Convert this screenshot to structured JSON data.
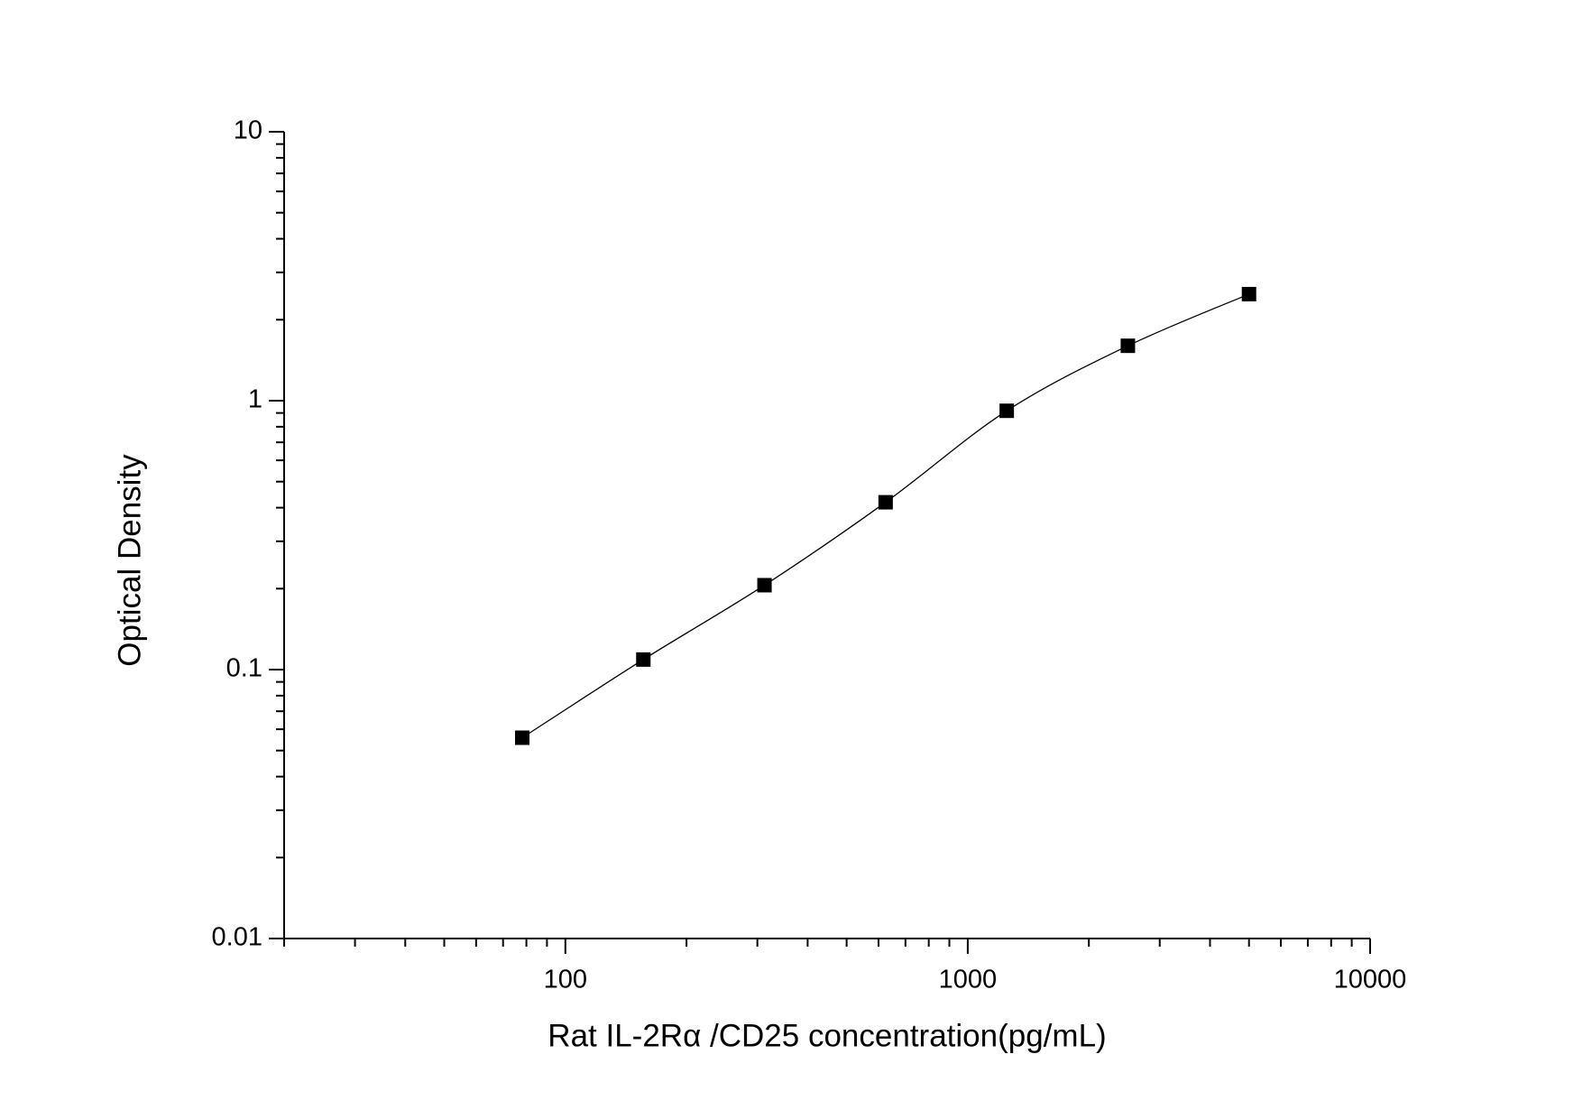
{
  "chart_data": {
    "type": "line",
    "x_label": "Rat   IL-2Rα  /CD25 concentration(pg/mL)",
    "y_label": "Optical Density",
    "x": [
      78.125,
      156.25,
      312.5,
      625,
      1250,
      2500,
      5000
    ],
    "series": [
      {
        "color": "#000000",
        "values": [
          0.0558,
          0.109,
          0.206,
          0.419,
          0.917,
          1.6,
          2.49
        ]
      }
    ],
    "xscale": "log",
    "yscale": "log",
    "xlim": [
      20,
      10000
    ],
    "ylim": [
      0.01,
      10
    ],
    "xticks": [
      100,
      1000,
      10000
    ],
    "yticks": [
      0.01,
      0.1,
      1,
      10
    ],
    "xminor_ticks": [
      20,
      30,
      40,
      50,
      60,
      70,
      80,
      90,
      200,
      300,
      400,
      500,
      600,
      700,
      800,
      900,
      2000,
      3000,
      4000,
      5000,
      6000,
      7000,
      8000,
      9000
    ],
    "yminor_ticks": [
      0.02,
      0.03,
      0.04,
      0.05,
      0.06,
      0.07,
      0.08,
      0.09,
      0.2,
      0.3,
      0.4,
      0.5,
      0.6,
      0.7,
      0.8,
      0.9,
      2,
      3,
      4,
      5,
      6,
      7,
      8,
      9
    ],
    "grid": false
  }
}
